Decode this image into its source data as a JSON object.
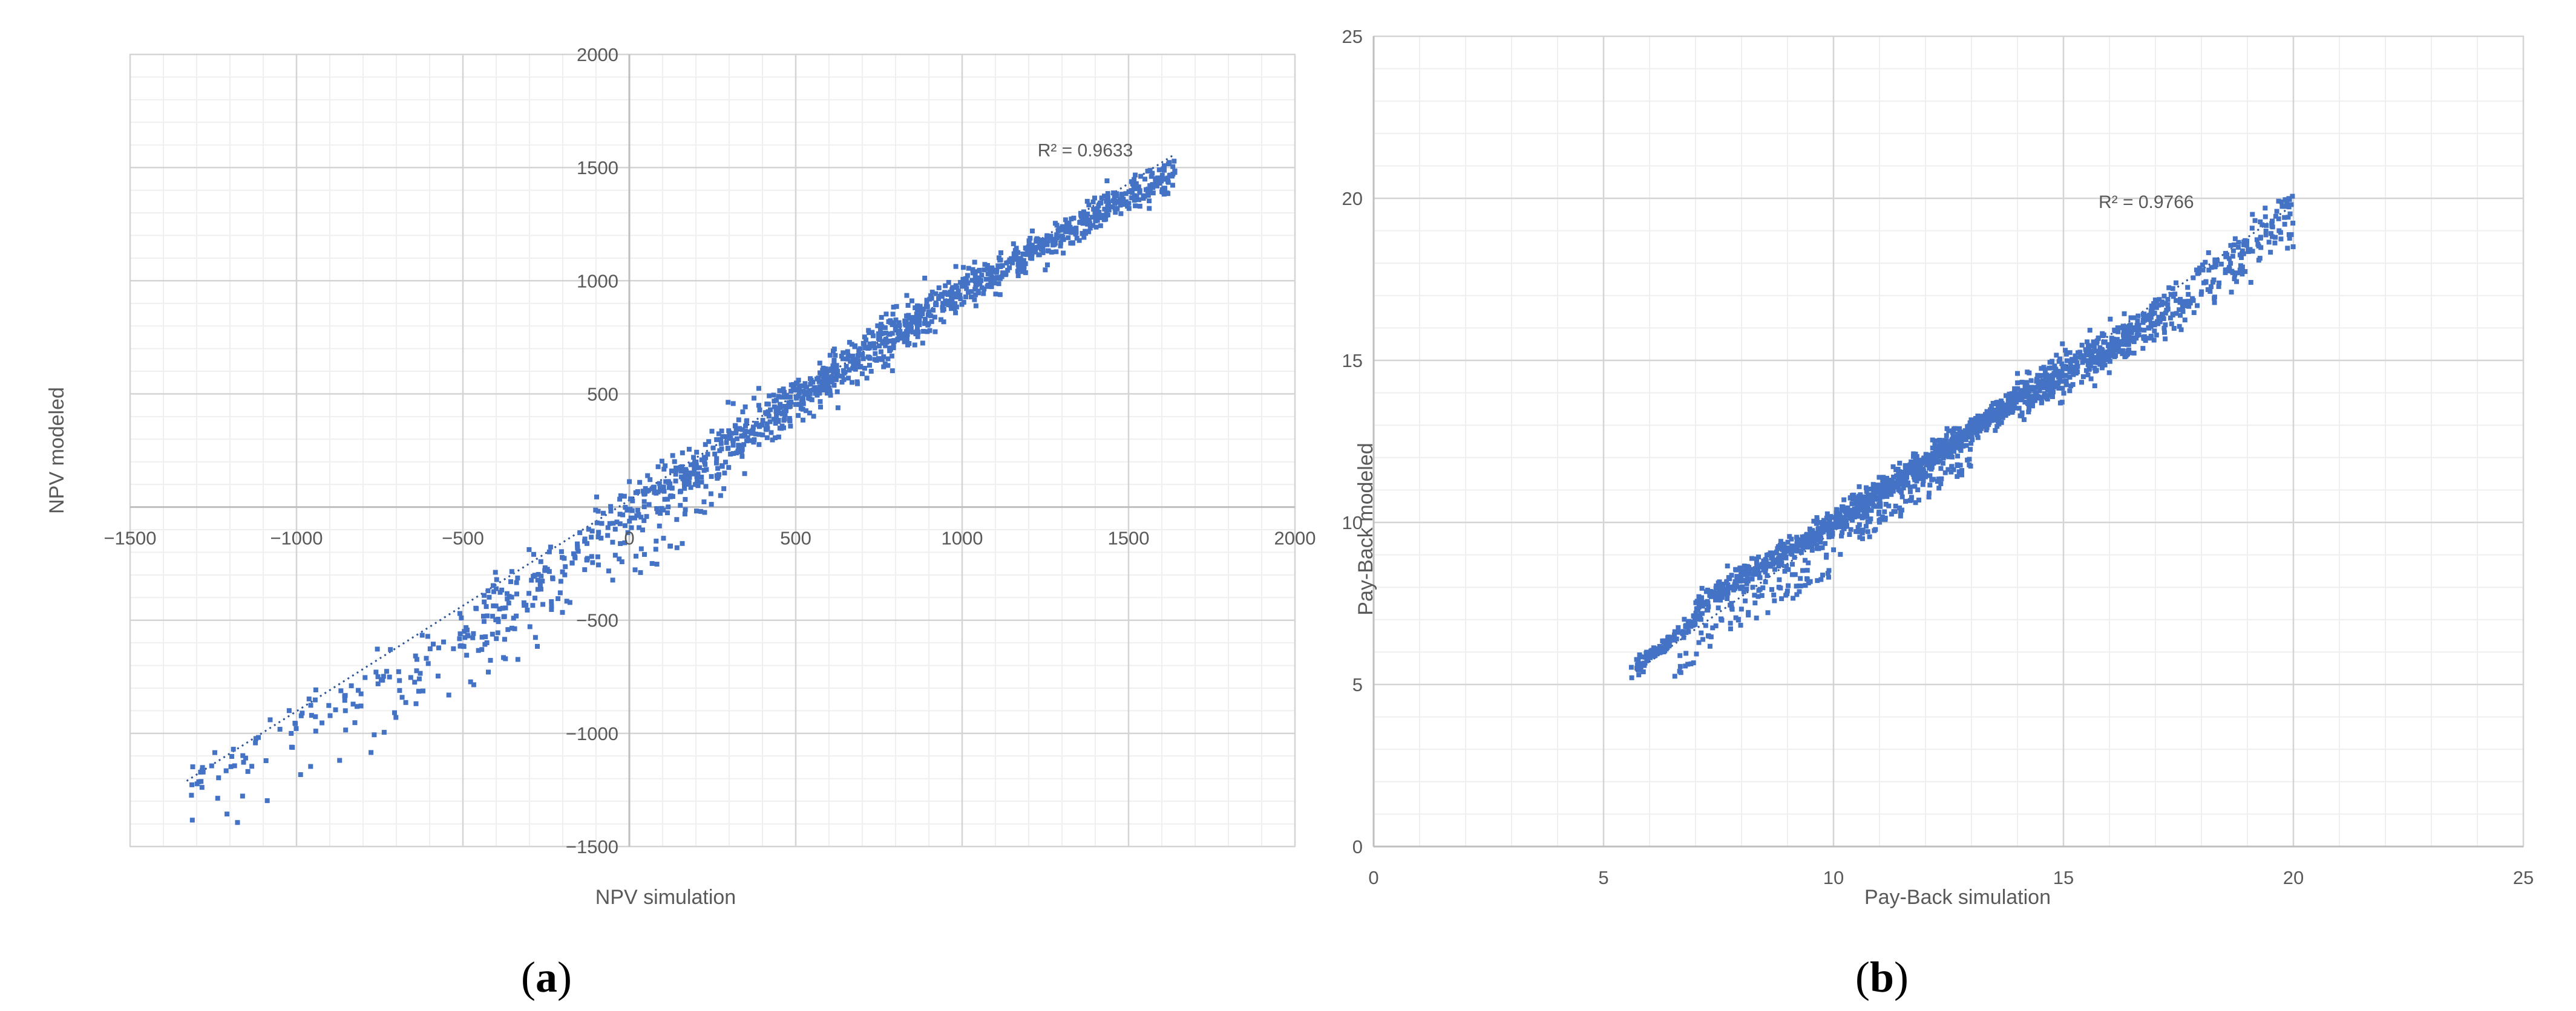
{
  "chart_data": [
    {
      "type": "scatter",
      "panel_label": "(a)",
      "panel_letter": "a",
      "xlabel": "NPV simulation",
      "ylabel": "NPV modeled",
      "xlim": [
        -1500,
        2000
      ],
      "ylim": [
        -1500,
        2000
      ],
      "x_ticks": [
        -1500,
        -1000,
        -500,
        0,
        500,
        1000,
        1500,
        2000
      ],
      "y_ticks": [
        -1500,
        -1000,
        -500,
        0,
        500,
        1000,
        1500,
        2000
      ],
      "x_tick_labels": [
        "−1500",
        "−1000",
        "−500",
        "0",
        "500",
        "1000",
        "1500",
        "2000"
      ],
      "y_tick_labels": [
        "−1500",
        "−1000",
        "−500",
        "",
        "500",
        "1000",
        "1500",
        "2000"
      ],
      "grid": true,
      "minor_grid": true,
      "axes_cross_at_origin": true,
      "annotation": "R² = 0.9633",
      "annotation_at": [
        1370,
        1550
      ],
      "trendline": {
        "style": "dotted",
        "from": [
          -1330,
          -1210
        ],
        "to": [
          1640,
          1560
        ]
      },
      "marker_color": "#4472c4",
      "point_count_estimate": 1500,
      "point_cloud": {
        "description": "dense band following the trendline, widening at negative NPV",
        "x_range": [
          -1330,
          1640
        ],
        "segments": [
          {
            "x_from": -1330,
            "x_to": -500,
            "approx_y_at_start": -1230,
            "approx_y_at_end": -560,
            "spread": 110,
            "weight": 0.08
          },
          {
            "x_from": -500,
            "x_to": 0,
            "approx_y_at_start": -560,
            "approx_y_at_end": -20,
            "spread": 130,
            "weight": 0.12
          },
          {
            "x_from": 0,
            "x_to": 500,
            "approx_y_at_start": -20,
            "approx_y_at_end": 470,
            "spread": 110,
            "weight": 0.22
          },
          {
            "x_from": 500,
            "x_to": 1000,
            "approx_y_at_start": 470,
            "approx_y_at_end": 960,
            "spread": 95,
            "weight": 0.28
          },
          {
            "x_from": 1000,
            "x_to": 1640,
            "approx_y_at_start": 960,
            "approx_y_at_end": 1480,
            "spread": 75,
            "weight": 0.3
          }
        ]
      }
    },
    {
      "type": "scatter",
      "panel_label": "(b)",
      "panel_letter": "b",
      "xlabel": "Pay-Back simulation",
      "ylabel": "Pay-Back modeled",
      "xlim": [
        0,
        25
      ],
      "ylim": [
        0,
        25
      ],
      "x_ticks": [
        0,
        5,
        10,
        15,
        20,
        25
      ],
      "y_ticks": [
        0,
        5,
        10,
        15,
        20,
        25
      ],
      "x_tick_labels": [
        "0",
        "5",
        "10",
        "15",
        "20",
        "25"
      ],
      "y_tick_labels": [
        "0",
        "5",
        "10",
        "15",
        "20",
        "25"
      ],
      "grid": true,
      "minor_grid": true,
      "axes_cross_at_origin": false,
      "annotation": "R² = 0.9766",
      "annotation_at": [
        16.8,
        19.7
      ],
      "trendline": {
        "style": "dotted",
        "from": [
          5.7,
          5.4
        ],
        "to": [
          20,
          19.8
        ]
      },
      "marker_color": "#4472c4",
      "point_count_estimate": 2000,
      "point_cloud": {
        "description": "tight band along the trendline with a lower-right offshoot between x 6 and 13",
        "x_range": [
          5.6,
          20
        ],
        "segments": [
          {
            "x_from": 5.6,
            "x_to": 7,
            "approx_y_at_start": 5.4,
            "approx_y_at_end": 7.0,
            "spread": 0.25,
            "weight": 0.06
          },
          {
            "x_from": 7,
            "x_to": 10,
            "approx_y_at_start": 7.4,
            "approx_y_at_end": 10.0,
            "spread": 0.35,
            "weight": 0.22
          },
          {
            "x_from": 10,
            "x_to": 14,
            "approx_y_at_start": 10.0,
            "approx_y_at_end": 13.8,
            "spread": 0.35,
            "weight": 0.4
          },
          {
            "x_from": 14,
            "x_to": 17,
            "approx_y_at_start": 13.8,
            "approx_y_at_end": 16.2,
            "spread": 0.6,
            "weight": 0.22
          },
          {
            "x_from": 17,
            "x_to": 20,
            "approx_y_at_start": 16.2,
            "approx_y_at_end": 19.6,
            "spread": 0.7,
            "weight": 0.1
          }
        ]
      }
    }
  ]
}
